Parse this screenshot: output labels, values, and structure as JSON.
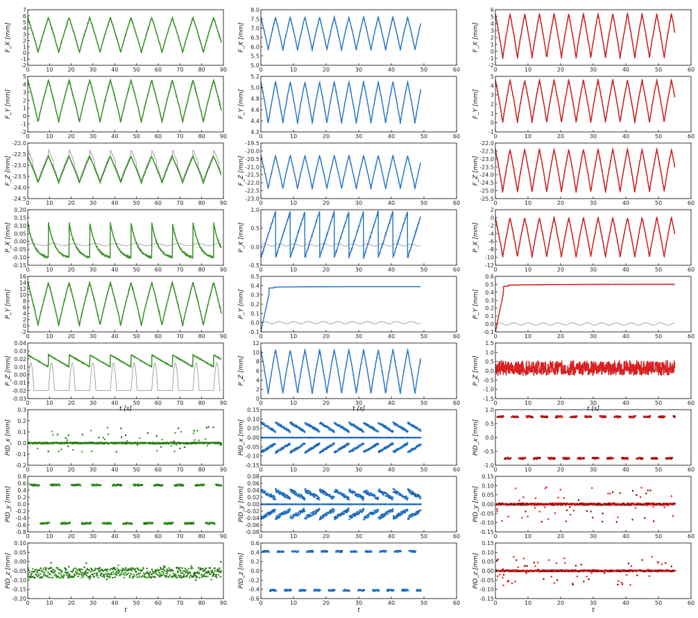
{
  "figure": {
    "columns": [
      "green",
      "blue",
      "red"
    ],
    "colors": {
      "green": [
        "#3a9d23",
        "#1f6b12",
        "#5ccf3a"
      ],
      "blue": [
        "#2a7fd4",
        "#1a5fa8",
        "#5aaef0"
      ],
      "red": [
        "#e02020",
        "#8b0000",
        "#ff5050"
      ],
      "reference": "#999999",
      "frame": "#000000"
    }
  },
  "chart_data": [
    {
      "id": "r0c0",
      "type": "line",
      "title": "",
      "ylabel": "F_X [mm]",
      "xlabel": "",
      "xlim": [
        0,
        90
      ],
      "ylim": [
        -2,
        7
      ],
      "xticks": [
        0,
        10,
        20,
        30,
        40,
        50,
        60,
        70,
        80,
        90
      ],
      "yticks": [
        -2,
        -1,
        0,
        1,
        2,
        3,
        4,
        5,
        6,
        7
      ],
      "color": "green",
      "pattern": "saw",
      "period": 9.5,
      "low": 0,
      "high": 5.7,
      "xend": 89,
      "reference": "overlap"
    },
    {
      "id": "r0c1",
      "type": "line",
      "title": "",
      "ylabel": "F_X [mm]",
      "xlabel": "",
      "xlim": [
        0,
        60
      ],
      "ylim": [
        5,
        8
      ],
      "xticks": [
        0,
        10,
        20,
        30,
        40,
        50,
        60
      ],
      "yticks": [
        5.0,
        5.5,
        6.0,
        6.5,
        7.0,
        7.5,
        8.0
      ],
      "yfmt": 1,
      "color": "blue",
      "pattern": "saw",
      "period": 4.5,
      "low": 5.8,
      "high": 7.6,
      "xend": 49,
      "reference": "overlap"
    },
    {
      "id": "r0c2",
      "type": "line",
      "title": "",
      "ylabel": "F_X [mm]",
      "xlabel": "",
      "xlim": [
        0,
        60
      ],
      "ylim": [
        -2,
        6
      ],
      "xticks": [
        0,
        10,
        20,
        30,
        40,
        50,
        60
      ],
      "yticks": [
        -2,
        -1,
        0,
        1,
        2,
        3,
        4,
        5,
        6
      ],
      "color": "red",
      "pattern": "saw",
      "period": 4.5,
      "low": -1,
      "high": 5.4,
      "xend": 55,
      "reference": "overlap"
    },
    {
      "id": "r1c0",
      "type": "line",
      "title": "",
      "ylabel": "F_Y [mm]",
      "xlabel": "",
      "xlim": [
        0,
        90
      ],
      "ylim": [
        -2,
        5
      ],
      "xticks": [
        0,
        10,
        20,
        30,
        40,
        50,
        60,
        70,
        80,
        90
      ],
      "yticks": [
        -2,
        -1,
        0,
        1,
        2,
        3,
        4,
        5
      ],
      "color": "green",
      "pattern": "saw",
      "period": 9.5,
      "low": -0.8,
      "high": 4.5,
      "xend": 89,
      "reference": "overlap"
    },
    {
      "id": "r1c1",
      "type": "line",
      "title": "",
      "ylabel": "F_Y [mm]",
      "xlabel": "",
      "xlim": [
        0,
        60
      ],
      "ylim": [
        4.2,
        5.2
      ],
      "xticks": [
        0,
        10,
        20,
        30,
        40,
        50,
        60
      ],
      "yticks": [
        4.2,
        4.4,
        4.6,
        4.8,
        5.0,
        5.2
      ],
      "yfmt": 1,
      "color": "blue",
      "pattern": "saw",
      "period": 4.5,
      "low": 4.35,
      "high": 5.1,
      "xend": 49,
      "reference": "overlap"
    },
    {
      "id": "r1c2",
      "type": "line",
      "title": "",
      "ylabel": "F_Y [mm]",
      "xlabel": "",
      "xlim": [
        0,
        60
      ],
      "ylim": [
        -1,
        5
      ],
      "xticks": [
        0,
        10,
        20,
        30,
        40,
        50,
        60
      ],
      "yticks": [
        -1,
        0,
        1,
        2,
        3,
        4,
        5
      ],
      "color": "red",
      "pattern": "saw",
      "period": 4.5,
      "low": 0,
      "high": 4.6,
      "xend": 55,
      "reference": "overlap"
    },
    {
      "id": "r2c0",
      "type": "line",
      "title": "",
      "ylabel": "F_Z [mm]",
      "xlabel": "",
      "xlim": [
        0,
        90
      ],
      "ylim": [
        -24.5,
        -22.0
      ],
      "xticks": [
        0,
        10,
        20,
        30,
        40,
        50,
        60,
        70,
        80,
        90
      ],
      "yticks": [
        -24.5,
        -24.0,
        -23.5,
        -23.0,
        -22.5,
        -22.0
      ],
      "yfmt": 1,
      "color": "green",
      "pattern": "saw",
      "period": 9.5,
      "low": -23.8,
      "high": -22.6,
      "xend": 89,
      "reference": "offset"
    },
    {
      "id": "r2c1",
      "type": "line",
      "title": "",
      "ylabel": "F_Z [mm]",
      "xlabel": "",
      "xlim": [
        0,
        60
      ],
      "ylim": [
        -23.0,
        -19.5
      ],
      "xticks": [
        0,
        10,
        20,
        30,
        40,
        50,
        60
      ],
      "yticks": [
        -23.0,
        -22.5,
        -22.0,
        -21.5,
        -21.0,
        -20.5,
        -20.0,
        -19.5
      ],
      "yfmt": 1,
      "color": "blue",
      "pattern": "saw",
      "period": 4.5,
      "low": -22.4,
      "high": -20.3,
      "xend": 49,
      "reference": "overlap"
    },
    {
      "id": "r2c2",
      "type": "line",
      "title": "",
      "ylabel": "F_Z [mm]",
      "xlabel": "",
      "xlim": [
        0,
        60
      ],
      "ylim": [
        -25.5,
        -22.0
      ],
      "xticks": [
        0,
        10,
        20,
        30,
        40,
        50,
        60
      ],
      "yticks": [
        -25.5,
        -25.0,
        -24.5,
        -24.0,
        -23.5,
        -23.0,
        -22.5,
        -22.0
      ],
      "yfmt": 1,
      "color": "red",
      "pattern": "saw",
      "period": 4.5,
      "low": -25.1,
      "high": -22.4,
      "xend": 55,
      "reference": "overlap"
    },
    {
      "id": "r3c0",
      "type": "line",
      "title": "",
      "ylabel": "P_X [mm]",
      "xlabel": "",
      "xlim": [
        0,
        90
      ],
      "ylim": [
        -0.15,
        0.2
      ],
      "xticks": [
        0,
        10,
        20,
        30,
        40,
        50,
        60,
        70,
        80,
        90
      ],
      "yticks": [
        -0.15,
        -0.1,
        -0.05,
        0.0,
        0.05,
        0.1,
        0.15,
        0.2
      ],
      "yfmt": 2,
      "color": "green",
      "pattern": "decay",
      "period": 9.5,
      "low": -0.11,
      "high": 0.12,
      "xend": 89,
      "reference": "flat",
      "refval": -0.02
    },
    {
      "id": "r3c1",
      "type": "line",
      "title": "",
      "ylabel": "P_X [mm]",
      "xlabel": "",
      "xlim": [
        0,
        60
      ],
      "ylim": [
        -0.5,
        1.0
      ],
      "xticks": [
        0,
        10,
        20,
        30,
        40,
        50,
        60
      ],
      "yticks": [
        -0.5,
        0.0,
        0.5,
        1.0
      ],
      "yfmt": 1,
      "color": "blue",
      "pattern": "ramp",
      "period": 4.5,
      "low": -0.3,
      "high": 0.95,
      "xend": 49,
      "reference": "flat",
      "refval": 0.05
    },
    {
      "id": "r3c2",
      "type": "line",
      "title": "",
      "ylabel": "P_X [mm]",
      "xlabel": "",
      "xlim": [
        0,
        60
      ],
      "ylim": [
        -12,
        2
      ],
      "xticks": [
        0,
        10,
        20,
        30,
        40,
        50,
        60
      ],
      "yticks": [
        -12,
        -10,
        -8,
        -6,
        -4,
        -2,
        0,
        2
      ],
      "color": "red",
      "pattern": "saw",
      "period": 4.5,
      "low": -10,
      "high": 0,
      "xend": 55,
      "reference": "overlap"
    },
    {
      "id": "r4c0",
      "type": "line",
      "title": "",
      "ylabel": "P_Y [mm]",
      "xlabel": "",
      "xlim": [
        0,
        90
      ],
      "ylim": [
        -2,
        16
      ],
      "xticks": [
        0,
        10,
        20,
        30,
        40,
        50,
        60,
        70,
        80,
        90
      ],
      "yticks": [
        -2,
        0,
        2,
        4,
        6,
        8,
        10,
        12,
        14,
        16
      ],
      "color": "green",
      "pattern": "saw",
      "period": 9.5,
      "low": 0,
      "high": 14,
      "xend": 89,
      "reference": "overlap"
    },
    {
      "id": "r4c1",
      "type": "line",
      "title": "",
      "ylabel": "P_Y [mm]",
      "xlabel": "",
      "xlim": [
        0,
        60
      ],
      "ylim": [
        -0.1,
        0.5
      ],
      "xticks": [
        0,
        10,
        20,
        30,
        40,
        50,
        60
      ],
      "yticks": [
        -0.1,
        0.0,
        0.1,
        0.2,
        0.3,
        0.4,
        0.5
      ],
      "yfmt": 1,
      "color": "blue",
      "pattern": "step",
      "period": 4.5,
      "low": 0.36,
      "high": 0.39,
      "xend": 49,
      "reference": "flat",
      "refval": 0.0
    },
    {
      "id": "r4c2",
      "type": "line",
      "title": "",
      "ylabel": "P_Y [mm]",
      "xlabel": "",
      "xlim": [
        0,
        60
      ],
      "ylim": [
        -0.1,
        0.6
      ],
      "xticks": [
        0,
        10,
        20,
        30,
        40,
        50,
        60
      ],
      "yticks": [
        -0.1,
        0.0,
        0.1,
        0.2,
        0.3,
        0.4,
        0.5,
        0.6
      ],
      "yfmt": 1,
      "color": "red",
      "pattern": "step",
      "period": 4.5,
      "low": 0.45,
      "high": 0.5,
      "xend": 55,
      "reference": "flat",
      "refval": 0.0
    },
    {
      "id": "r5c0",
      "type": "line",
      "title": "",
      "ylabel": "P_Z [mm]",
      "xlabel": "t [s]",
      "xlim": [
        0,
        90
      ],
      "ylim": [
        -0.03,
        0.04
      ],
      "xticks": [
        0,
        10,
        20,
        30,
        40,
        50,
        60,
        70,
        80,
        90
      ],
      "yticks": [
        -0.03,
        -0.02,
        -0.01,
        0.0,
        0.01,
        0.02,
        0.03,
        0.04
      ],
      "yfmt": 2,
      "color": "green",
      "pattern": "steps",
      "period": 9.5,
      "low": 0.0,
      "high": 0.025,
      "xend": 89,
      "reference": "spikes",
      "refval": -0.02
    },
    {
      "id": "r5c1",
      "type": "line",
      "title": "",
      "ylabel": "P_Z [mm]",
      "xlabel": "t [s]",
      "xlim": [
        0,
        60
      ],
      "ylim": [
        0,
        12
      ],
      "xticks": [
        0,
        10,
        20,
        30,
        40,
        50,
        60
      ],
      "yticks": [
        0,
        2,
        4,
        6,
        8,
        10,
        12
      ],
      "color": "blue",
      "pattern": "saw",
      "period": 4.5,
      "low": 1,
      "high": 10.5,
      "xend": 49,
      "reference": "overlap"
    },
    {
      "id": "r5c2",
      "type": "line",
      "title": "",
      "ylabel": "P_Z [mm]",
      "xlabel": "t [s]",
      "xlim": [
        0,
        60
      ],
      "ylim": [
        -1.5,
        1.5
      ],
      "xticks": [
        0,
        10,
        20,
        30,
        40,
        50,
        60
      ],
      "yticks": [
        -1.5,
        -1.0,
        -0.5,
        0.0,
        0.5,
        1.0,
        1.5
      ],
      "yfmt": 1,
      "color": "red",
      "pattern": "noise",
      "period": 4.5,
      "low": -0.3,
      "high": 0.6,
      "xend": 55,
      "reference": "flat",
      "refval": 0.0
    },
    {
      "id": "r6c0",
      "type": "scatter",
      "title": "",
      "ylabel": "PID_x [mm]",
      "xlabel": "",
      "xlim": [
        0,
        90
      ],
      "ylim": [
        -0.2,
        0.3
      ],
      "xticks": [
        0,
        10,
        20,
        30,
        40,
        50,
        60,
        70,
        80,
        90
      ],
      "yticks": [
        -0.2,
        -0.1,
        0.0,
        0.1,
        0.2,
        0.3
      ],
      "yfmt": 1,
      "color": "green",
      "pattern": "pidsparse",
      "period": 9.5,
      "low": -0.08,
      "high": 0.15,
      "xend": 89
    },
    {
      "id": "r6c1",
      "type": "scatter",
      "title": "",
      "ylabel": "PID_x [mm]",
      "xlabel": "",
      "xlim": [
        0,
        60
      ],
      "ylim": [
        -0.15,
        0.15
      ],
      "xticks": [
        0,
        10,
        20,
        30,
        40,
        50,
        60
      ],
      "yticks": [
        -0.15,
        -0.1,
        -0.05,
        0.0,
        0.05,
        0.1,
        0.15
      ],
      "yfmt": 2,
      "color": "blue",
      "pattern": "pidbands",
      "period": 4.5,
      "low": -0.08,
      "high": 0.08,
      "xend": 49
    },
    {
      "id": "r6c2",
      "type": "scatter",
      "title": "",
      "ylabel": "PID_x [mm]",
      "xlabel": "",
      "xlim": [
        0,
        60
      ],
      "ylim": [
        -1.0,
        1.0
      ],
      "xticks": [
        0,
        10,
        20,
        30,
        40,
        50,
        60
      ],
      "yticks": [
        -1.0,
        -0.5,
        0.0,
        0.5,
        1.0
      ],
      "yfmt": 1,
      "color": "red",
      "pattern": "blocks",
      "period": 4.5,
      "low": -0.75,
      "high": 0.75,
      "xend": 55
    },
    {
      "id": "r7c0",
      "type": "scatter",
      "title": "",
      "ylabel": "PID_y [mm]",
      "xlabel": "",
      "xlim": [
        0,
        90
      ],
      "ylim": [
        -0.8,
        0.8
      ],
      "xticks": [
        0,
        10,
        20,
        30,
        40,
        50,
        60,
        70,
        80,
        90
      ],
      "yticks": [
        -0.8,
        -0.6,
        -0.4,
        -0.2,
        0.0,
        0.2,
        0.4,
        0.6,
        0.8
      ],
      "yfmt": 1,
      "color": "green",
      "pattern": "blocks",
      "period": 9.5,
      "low": -0.55,
      "high": 0.55,
      "xend": 89
    },
    {
      "id": "r7c1",
      "type": "scatter",
      "title": "",
      "ylabel": "PID_y [mm]",
      "xlabel": "",
      "xlim": [
        0,
        60
      ],
      "ylim": [
        -0.08,
        0.08
      ],
      "xticks": [
        0,
        10,
        20,
        30,
        40,
        50,
        60
      ],
      "yticks": [
        -0.08,
        -0.06,
        -0.04,
        -0.02,
        0.0,
        0.02,
        0.04,
        0.06,
        0.08
      ],
      "yfmt": 2,
      "color": "blue",
      "pattern": "pidbands",
      "period": 4.5,
      "low": -0.04,
      "high": 0.04,
      "xend": 49
    },
    {
      "id": "r7c2",
      "type": "scatter",
      "title": "",
      "ylabel": "PID_y [mm]",
      "xlabel": "",
      "xlim": [
        0,
        60
      ],
      "ylim": [
        -0.15,
        0.15
      ],
      "xticks": [
        0,
        10,
        20,
        30,
        40,
        50,
        60
      ],
      "yticks": [
        -0.15,
        -0.1,
        -0.05,
        0.0,
        0.05,
        0.1,
        0.15
      ],
      "yfmt": 2,
      "color": "red",
      "pattern": "pidsparse",
      "period": 4.5,
      "low": -0.1,
      "high": 0.1,
      "xend": 55
    },
    {
      "id": "r8c0",
      "type": "scatter",
      "title": "",
      "ylabel": "PID_z [mm]",
      "xlabel": "t",
      "xlim": [
        0,
        90
      ],
      "ylim": [
        -0.2,
        0.1
      ],
      "xticks": [
        0,
        10,
        20,
        30,
        40,
        50,
        60,
        70,
        80,
        90
      ],
      "yticks": [
        -0.2,
        -0.15,
        -0.1,
        -0.05,
        0.0,
        0.05,
        0.1
      ],
      "yfmt": 2,
      "color": "green",
      "pattern": "noise",
      "period": 9.5,
      "low": -0.08,
      "high": -0.04,
      "xend": 89
    },
    {
      "id": "r8c1",
      "type": "scatter",
      "title": "",
      "ylabel": "PID_z [mm]",
      "xlabel": "t",
      "xlim": [
        0,
        60
      ],
      "ylim": [
        -0.6,
        0.6
      ],
      "xticks": [
        0,
        10,
        20,
        30,
        40,
        50,
        60
      ],
      "yticks": [
        -0.6,
        -0.4,
        -0.2,
        0.0,
        0.2,
        0.4,
        0.6
      ],
      "yfmt": 1,
      "color": "blue",
      "pattern": "blocks",
      "period": 4.5,
      "low": -0.42,
      "high": 0.42,
      "xend": 49
    },
    {
      "id": "r8c2",
      "type": "scatter",
      "title": "",
      "ylabel": "PID_z [mm]",
      "xlabel": "t",
      "xlim": [
        0,
        60
      ],
      "ylim": [
        -0.15,
        0.15
      ],
      "xticks": [
        0,
        10,
        20,
        30,
        40,
        50,
        60
      ],
      "yticks": [
        -0.15,
        -0.1,
        -0.05,
        0.0,
        0.05,
        0.1,
        0.15
      ],
      "yfmt": 2,
      "color": "red",
      "pattern": "pidsparse",
      "period": 4.5,
      "low": -0.08,
      "high": 0.08,
      "xend": 55
    }
  ]
}
